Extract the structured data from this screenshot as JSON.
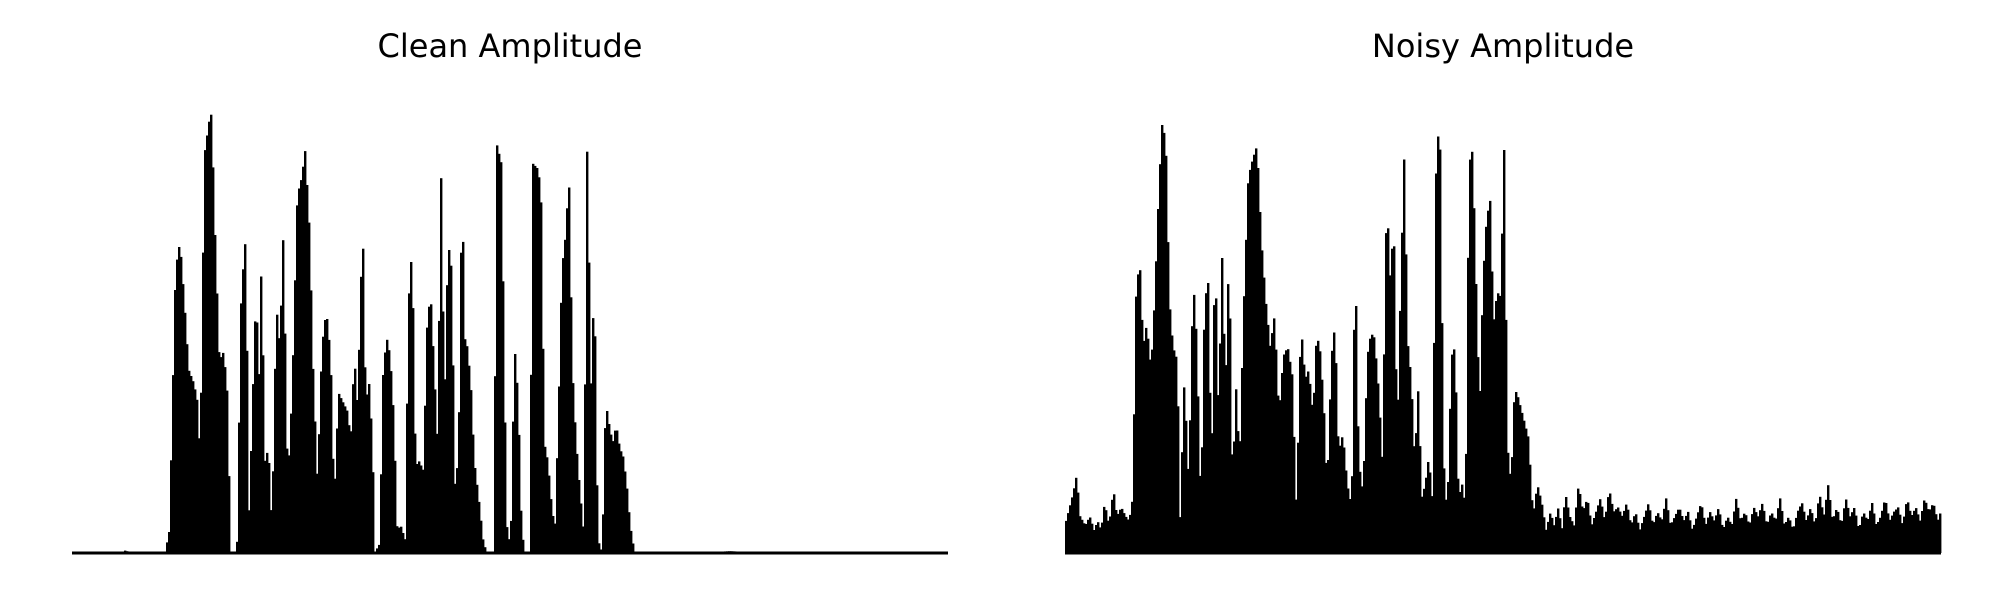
{
  "colors": {
    "background": "#ffffff",
    "waveform": "#000000"
  },
  "chart_data": [
    {
      "type": "area",
      "title": "Clean Amplitude",
      "xlabel": "",
      "ylabel": "",
      "axes_visible": false,
      "grid": false,
      "ylim": [
        0,
        1
      ],
      "envelope": [
        [
          0.0,
          0.0
        ],
        [
          0.055,
          0.0
        ],
        [
          0.06,
          0.006
        ],
        [
          0.065,
          0.0
        ],
        [
          0.105,
          0.0
        ],
        [
          0.11,
          0.05
        ],
        [
          0.117,
          0.62
        ],
        [
          0.122,
          0.68
        ],
        [
          0.127,
          0.55
        ],
        [
          0.132,
          0.4
        ],
        [
          0.138,
          0.37
        ],
        [
          0.142,
          0.33
        ],
        [
          0.145,
          0.2
        ],
        [
          0.15,
          0.87
        ],
        [
          0.155,
          0.94
        ],
        [
          0.158,
          0.96
        ],
        [
          0.162,
          0.7
        ],
        [
          0.167,
          0.42
        ],
        [
          0.172,
          0.44
        ],
        [
          0.176,
          0.35
        ],
        [
          0.18,
          0.0
        ],
        [
          0.187,
          0.0
        ],
        [
          0.192,
          0.57
        ],
        [
          0.197,
          0.69
        ],
        [
          0.201,
          0.08
        ],
        [
          0.205,
          0.34
        ],
        [
          0.209,
          0.58
        ],
        [
          0.212,
          0.36
        ],
        [
          0.215,
          0.64
        ],
        [
          0.219,
          0.2
        ],
        [
          0.223,
          0.23
        ],
        [
          0.227,
          0.05
        ],
        [
          0.232,
          0.54
        ],
        [
          0.236,
          0.45
        ],
        [
          0.24,
          0.7
        ],
        [
          0.245,
          0.15
        ],
        [
          0.25,
          0.35
        ],
        [
          0.256,
          0.78
        ],
        [
          0.261,
          0.82
        ],
        [
          0.265,
          0.88
        ],
        [
          0.27,
          0.7
        ],
        [
          0.274,
          0.4
        ],
        [
          0.279,
          0.15
        ],
        [
          0.284,
          0.45
        ],
        [
          0.289,
          0.53
        ],
        [
          0.294,
          0.43
        ],
        [
          0.298,
          0.11
        ],
        [
          0.303,
          0.35
        ],
        [
          0.308,
          0.33
        ],
        [
          0.313,
          0.31
        ],
        [
          0.317,
          0.25
        ],
        [
          0.321,
          0.43
        ],
        [
          0.325,
          0.31
        ],
        [
          0.328,
          0.58
        ],
        [
          0.331,
          0.67
        ],
        [
          0.334,
          0.33
        ],
        [
          0.338,
          0.37
        ],
        [
          0.342,
          0.23
        ],
        [
          0.344,
          0.0
        ],
        [
          0.35,
          0.02
        ],
        [
          0.354,
          0.4
        ],
        [
          0.358,
          0.47
        ],
        [
          0.362,
          0.43
        ],
        [
          0.366,
          0.3
        ],
        [
          0.37,
          0.05
        ],
        [
          0.374,
          0.06
        ],
        [
          0.379,
          0.03
        ],
        [
          0.383,
          0.55
        ],
        [
          0.387,
          0.67
        ],
        [
          0.391,
          0.19
        ],
        [
          0.395,
          0.2
        ],
        [
          0.4,
          0.18
        ],
        [
          0.404,
          0.49
        ],
        [
          0.408,
          0.57
        ],
        [
          0.412,
          0.41
        ],
        [
          0.416,
          0.24
        ],
        [
          0.42,
          0.83
        ],
        [
          0.424,
          0.32
        ],
        [
          0.428,
          0.68
        ],
        [
          0.432,
          0.62
        ],
        [
          0.436,
          0.15
        ],
        [
          0.44,
          0.21
        ],
        [
          0.444,
          0.82
        ],
        [
          0.447,
          0.47
        ],
        [
          0.45,
          0.45
        ],
        [
          0.454,
          0.37
        ],
        [
          0.458,
          0.2
        ],
        [
          0.463,
          0.12
        ],
        [
          0.468,
          0.03
        ],
        [
          0.472,
          0.0
        ],
        [
          0.48,
          0.0
        ],
        [
          0.484,
          0.89
        ],
        [
          0.489,
          0.85
        ],
        [
          0.493,
          0.3
        ],
        [
          0.496,
          0.0
        ],
        [
          0.5,
          0.07
        ],
        [
          0.504,
          0.45
        ],
        [
          0.508,
          0.34
        ],
        [
          0.512,
          0.05
        ],
        [
          0.516,
          0.0
        ],
        [
          0.521,
          0.0
        ],
        [
          0.525,
          0.85
        ],
        [
          0.53,
          0.84
        ],
        [
          0.534,
          0.8
        ],
        [
          0.538,
          0.24
        ],
        [
          0.542,
          0.2
        ],
        [
          0.546,
          0.11
        ],
        [
          0.55,
          0.05
        ],
        [
          0.554,
          0.3
        ],
        [
          0.558,
          0.62
        ],
        [
          0.562,
          0.69
        ],
        [
          0.566,
          0.82
        ],
        [
          0.57,
          0.4
        ],
        [
          0.574,
          0.25
        ],
        [
          0.578,
          0.15
        ],
        [
          0.583,
          0.04
        ],
        [
          0.587,
          0.93
        ],
        [
          0.591,
          0.35
        ],
        [
          0.595,
          0.6
        ],
        [
          0.599,
          0.03
        ],
        [
          0.604,
          0.0
        ],
        [
          0.608,
          0.33
        ],
        [
          0.612,
          0.28
        ],
        [
          0.616,
          0.24
        ],
        [
          0.62,
          0.28
        ],
        [
          0.624,
          0.23
        ],
        [
          0.628,
          0.21
        ],
        [
          0.632,
          0.15
        ],
        [
          0.636,
          0.06
        ],
        [
          0.641,
          0.0
        ],
        [
          0.7,
          0.0
        ],
        [
          0.75,
          0.004
        ],
        [
          0.8,
          0.0
        ],
        [
          1.0,
          0.0
        ]
      ]
    },
    {
      "type": "area",
      "title": "Noisy Amplitude",
      "xlabel": "",
      "ylabel": "",
      "axes_visible": false,
      "grid": false,
      "ylim": [
        0,
        1
      ],
      "envelope": [
        [
          0.0,
          0.07
        ],
        [
          0.008,
          0.13
        ],
        [
          0.012,
          0.17
        ],
        [
          0.016,
          0.08
        ],
        [
          0.022,
          0.06
        ],
        [
          0.027,
          0.08
        ],
        [
          0.032,
          0.05
        ],
        [
          0.036,
          0.07
        ],
        [
          0.04,
          0.05
        ],
        [
          0.044,
          0.11
        ],
        [
          0.049,
          0.06
        ],
        [
          0.054,
          0.14
        ],
        [
          0.058,
          0.08
        ],
        [
          0.063,
          0.1
        ],
        [
          0.068,
          0.08
        ],
        [
          0.072,
          0.07
        ],
        [
          0.076,
          0.12
        ],
        [
          0.08,
          0.57
        ],
        [
          0.084,
          0.64
        ],
        [
          0.088,
          0.45
        ],
        [
          0.092,
          0.5
        ],
        [
          0.097,
          0.4
        ],
        [
          0.101,
          0.55
        ],
        [
          0.106,
          0.8
        ],
        [
          0.11,
          0.95
        ],
        [
          0.114,
          0.88
        ],
        [
          0.118,
          0.55
        ],
        [
          0.122,
          0.45
        ],
        [
          0.127,
          0.42
        ],
        [
          0.13,
          0.07
        ],
        [
          0.135,
          0.38
        ],
        [
          0.14,
          0.15
        ],
        [
          0.145,
          0.6
        ],
        [
          0.149,
          0.47
        ],
        [
          0.154,
          0.09
        ],
        [
          0.158,
          0.54
        ],
        [
          0.162,
          0.6
        ],
        [
          0.166,
          0.18
        ],
        [
          0.17,
          0.67
        ],
        [
          0.174,
          0.3
        ],
        [
          0.178,
          0.65
        ],
        [
          0.182,
          0.36
        ],
        [
          0.186,
          0.67
        ],
        [
          0.19,
          0.15
        ],
        [
          0.194,
          0.36
        ],
        [
          0.198,
          0.2
        ],
        [
          0.203,
          0.55
        ],
        [
          0.208,
          0.82
        ],
        [
          0.213,
          0.86
        ],
        [
          0.218,
          0.89
        ],
        [
          0.223,
          0.68
        ],
        [
          0.228,
          0.55
        ],
        [
          0.233,
          0.45
        ],
        [
          0.238,
          0.52
        ],
        [
          0.243,
          0.3
        ],
        [
          0.248,
          0.43
        ],
        [
          0.253,
          0.45
        ],
        [
          0.258,
          0.39
        ],
        [
          0.263,
          0.09
        ],
        [
          0.268,
          0.5
        ],
        [
          0.273,
          0.38
        ],
        [
          0.277,
          0.4
        ],
        [
          0.282,
          0.3
        ],
        [
          0.286,
          0.48
        ],
        [
          0.29,
          0.44
        ],
        [
          0.294,
          0.33
        ],
        [
          0.298,
          0.14
        ],
        [
          0.303,
          0.43
        ],
        [
          0.307,
          0.5
        ],
        [
          0.311,
          0.22
        ],
        [
          0.316,
          0.26
        ],
        [
          0.321,
          0.15
        ],
        [
          0.326,
          0.1
        ],
        [
          0.33,
          0.66
        ],
        [
          0.334,
          0.2
        ],
        [
          0.339,
          0.13
        ],
        [
          0.344,
          0.43
        ],
        [
          0.348,
          0.48
        ],
        [
          0.352,
          0.47
        ],
        [
          0.357,
          0.35
        ],
        [
          0.361,
          0.2
        ],
        [
          0.366,
          0.78
        ],
        [
          0.37,
          0.6
        ],
        [
          0.374,
          0.72
        ],
        [
          0.378,
          0.25
        ],
        [
          0.382,
          0.59
        ],
        [
          0.386,
          0.87
        ],
        [
          0.39,
          0.46
        ],
        [
          0.394,
          0.38
        ],
        [
          0.398,
          0.2
        ],
        [
          0.402,
          0.36
        ],
        [
          0.406,
          0.12
        ],
        [
          0.41,
          0.15
        ],
        [
          0.414,
          0.21
        ],
        [
          0.418,
          0.12
        ],
        [
          0.423,
          0.93
        ],
        [
          0.427,
          0.88
        ],
        [
          0.431,
          0.2
        ],
        [
          0.435,
          0.08
        ],
        [
          0.44,
          0.43
        ],
        [
          0.444,
          0.45
        ],
        [
          0.448,
          0.12
        ],
        [
          0.452,
          0.15
        ],
        [
          0.456,
          0.1
        ],
        [
          0.46,
          0.85
        ],
        [
          0.464,
          0.88
        ],
        [
          0.468,
          0.59
        ],
        [
          0.472,
          0.31
        ],
        [
          0.476,
          0.6
        ],
        [
          0.48,
          0.73
        ],
        [
          0.484,
          0.77
        ],
        [
          0.488,
          0.5
        ],
        [
          0.492,
          0.57
        ],
        [
          0.496,
          0.56
        ],
        [
          0.5,
          0.88
        ],
        [
          0.504,
          0.23
        ],
        [
          0.508,
          0.15
        ],
        [
          0.512,
          0.36
        ],
        [
          0.516,
          0.34
        ],
        [
          0.52,
          0.31
        ],
        [
          0.524,
          0.28
        ],
        [
          0.528,
          0.25
        ],
        [
          0.533,
          0.08
        ],
        [
          0.538,
          0.15
        ],
        [
          0.543,
          0.11
        ],
        [
          0.548,
          0.05
        ],
        [
          0.553,
          0.09
        ],
        [
          0.557,
          0.06
        ],
        [
          0.562,
          0.1
        ],
        [
          0.566,
          0.05
        ],
        [
          0.57,
          0.13
        ],
        [
          0.575,
          0.08
        ],
        [
          0.58,
          0.06
        ],
        [
          0.585,
          0.15
        ],
        [
          0.59,
          0.09
        ],
        [
          0.595,
          0.12
        ],
        [
          0.6,
          0.06
        ],
        [
          0.605,
          0.09
        ],
        [
          0.61,
          0.12
        ],
        [
          0.615,
          0.07
        ],
        [
          0.62,
          0.14
        ],
        [
          0.625,
          0.09
        ],
        [
          0.63,
          0.1
        ],
        [
          0.635,
          0.08
        ],
        [
          0.64,
          0.11
        ],
        [
          0.645,
          0.06
        ],
        [
          0.65,
          0.09
        ],
        [
          0.655,
          0.05
        ],
        [
          0.66,
          0.08
        ],
        [
          0.665,
          0.11
        ],
        [
          0.67,
          0.06
        ],
        [
          0.675,
          0.09
        ],
        [
          0.68,
          0.07
        ],
        [
          0.685,
          0.12
        ],
        [
          0.69,
          0.06
        ],
        [
          0.695,
          0.08
        ],
        [
          0.7,
          0.1
        ],
        [
          0.705,
          0.07
        ],
        [
          0.71,
          0.09
        ],
        [
          0.715,
          0.05
        ],
        [
          0.72,
          0.08
        ],
        [
          0.725,
          0.11
        ],
        [
          0.73,
          0.06
        ],
        [
          0.735,
          0.09
        ],
        [
          0.74,
          0.07
        ],
        [
          0.745,
          0.1
        ],
        [
          0.75,
          0.05
        ],
        [
          0.755,
          0.08
        ],
        [
          0.76,
          0.06
        ],
        [
          0.765,
          0.12
        ],
        [
          0.77,
          0.07
        ],
        [
          0.775,
          0.09
        ],
        [
          0.78,
          0.06
        ],
        [
          0.785,
          0.1
        ],
        [
          0.79,
          0.08
        ],
        [
          0.795,
          0.11
        ],
        [
          0.8,
          0.06
        ],
        [
          0.805,
          0.09
        ],
        [
          0.81,
          0.07
        ],
        [
          0.815,
          0.12
        ],
        [
          0.82,
          0.06
        ],
        [
          0.825,
          0.08
        ],
        [
          0.83,
          0.05
        ],
        [
          0.835,
          0.09
        ],
        [
          0.84,
          0.11
        ],
        [
          0.845,
          0.07
        ],
        [
          0.85,
          0.1
        ],
        [
          0.855,
          0.06
        ],
        [
          0.86,
          0.13
        ],
        [
          0.865,
          0.08
        ],
        [
          0.87,
          0.15
        ],
        [
          0.875,
          0.07
        ],
        [
          0.88,
          0.1
        ],
        [
          0.885,
          0.06
        ],
        [
          0.89,
          0.12
        ],
        [
          0.895,
          0.08
        ],
        [
          0.9,
          0.1
        ],
        [
          0.905,
          0.05
        ],
        [
          0.91,
          0.09
        ],
        [
          0.915,
          0.07
        ],
        [
          0.92,
          0.11
        ],
        [
          0.925,
          0.06
        ],
        [
          0.93,
          0.08
        ],
        [
          0.935,
          0.12
        ],
        [
          0.94,
          0.07
        ],
        [
          0.945,
          0.09
        ],
        [
          0.95,
          0.1
        ],
        [
          0.955,
          0.06
        ],
        [
          0.96,
          0.12
        ],
        [
          0.965,
          0.08
        ],
        [
          0.97,
          0.1
        ],
        [
          0.975,
          0.07
        ],
        [
          0.98,
          0.12
        ],
        [
          0.985,
          0.09
        ],
        [
          0.99,
          0.11
        ],
        [
          0.995,
          0.07
        ],
        [
          1.0,
          0.1
        ]
      ]
    }
  ]
}
